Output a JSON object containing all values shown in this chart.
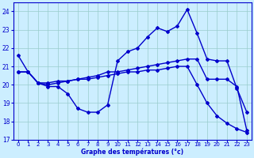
{
  "title": "Graphe des températures (°c)",
  "bg_color": "#cceeff",
  "grid_color": "#99cccc",
  "line_color": "#0000cc",
  "xlim": [
    -0.5,
    23.5
  ],
  "ylim": [
    17,
    24.5
  ],
  "yticks": [
    17,
    18,
    19,
    20,
    21,
    22,
    23,
    24
  ],
  "xticks": [
    0,
    1,
    2,
    3,
    4,
    5,
    6,
    7,
    8,
    9,
    10,
    11,
    12,
    13,
    14,
    15,
    16,
    17,
    18,
    19,
    20,
    21,
    22,
    23
  ],
  "line1_x": [
    0,
    1,
    2,
    3,
    4,
    5,
    6,
    7,
    8,
    9,
    10,
    11,
    12,
    13,
    14,
    15,
    16,
    17,
    18,
    19,
    20,
    21,
    22,
    23
  ],
  "line1_y": [
    21.6,
    20.7,
    20.1,
    19.9,
    19.9,
    19.5,
    18.7,
    18.5,
    18.5,
    18.9,
    21.3,
    21.8,
    22.0,
    22.6,
    23.1,
    22.9,
    23.2,
    24.1,
    22.8,
    21.4,
    21.3,
    21.3,
    19.8,
    18.5
  ],
  "line2_x": [
    0,
    1,
    2,
    3,
    4,
    5,
    6,
    7,
    8,
    9,
    10,
    11,
    12,
    13,
    14,
    15,
    16,
    17,
    18,
    19,
    20,
    21,
    22,
    23
  ],
  "line2_y": [
    20.7,
    20.7,
    20.1,
    20.0,
    20.1,
    20.2,
    20.3,
    20.4,
    20.5,
    20.7,
    20.7,
    20.8,
    20.9,
    21.0,
    21.1,
    21.2,
    21.3,
    21.4,
    21.4,
    20.3,
    20.3,
    20.3,
    19.9,
    17.5
  ],
  "line3_x": [
    0,
    1,
    2,
    3,
    4,
    5,
    6,
    7,
    8,
    9,
    10,
    11,
    12,
    13,
    14,
    15,
    16,
    17,
    18,
    19,
    20,
    21,
    22,
    23
  ],
  "line3_y": [
    20.7,
    20.7,
    20.1,
    20.1,
    20.2,
    20.2,
    20.3,
    20.3,
    20.4,
    20.5,
    20.6,
    20.7,
    20.7,
    20.8,
    20.8,
    20.9,
    21.0,
    21.0,
    20.0,
    19.0,
    18.3,
    17.9,
    17.6,
    17.4
  ]
}
